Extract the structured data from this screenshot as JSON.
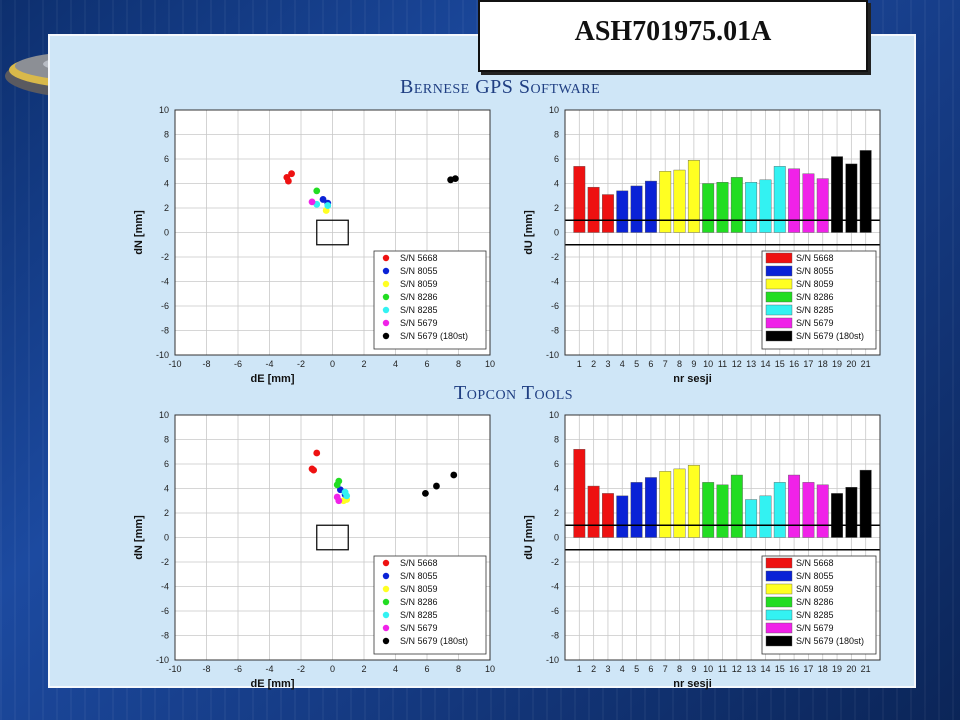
{
  "header": {
    "title": "ASH701975.01A",
    "section_top": "Bernese GPS Software",
    "section_bottom": "Topcon Tools"
  },
  "series": [
    {
      "name": "S/N 5668",
      "color": "#ee1111"
    },
    {
      "name": "S/N 8055",
      "color": "#0a22d6"
    },
    {
      "name": "S/N 8059",
      "color": "#ffff22"
    },
    {
      "name": "S/N 8286",
      "color": "#22dd22"
    },
    {
      "name": "S/N 8285",
      "color": "#33f2f2"
    },
    {
      "name": "S/N 5679",
      "color": "#f022e8"
    },
    {
      "name": "S/N 5679 (180st)",
      "color": "#000000"
    }
  ],
  "chart_data": [
    {
      "type": "scatter",
      "xlabel": "dE [mm]",
      "ylabel": "dN [mm]",
      "xlim": [
        -10,
        10
      ],
      "ylim": [
        -10,
        10
      ],
      "xticks": [
        "-10",
        "-8",
        "-6",
        "-4",
        "-2",
        "0",
        "2",
        "4",
        "6",
        "8",
        "10"
      ],
      "yticks": [
        "10",
        "8",
        "6",
        "4",
        "2",
        "0",
        "-2",
        "-4",
        "-6",
        "-8",
        "-10"
      ],
      "grid": true,
      "legend": "bottom-right",
      "reference_square": {
        "x": [
          -1,
          1
        ],
        "y": [
          -1,
          1
        ]
      },
      "series": [
        {
          "name": "S/N 5668",
          "points": [
            [
              -2.9,
              4.5
            ],
            [
              -2.6,
              4.8
            ],
            [
              -2.8,
              4.2
            ]
          ]
        },
        {
          "name": "S/N 8055",
          "points": [
            [
              -0.6,
              2.7
            ],
            [
              -0.3,
              2.4
            ]
          ]
        },
        {
          "name": "S/N 8059",
          "points": [
            [
              -0.4,
              1.8
            ]
          ]
        },
        {
          "name": "S/N 8286",
          "points": [
            [
              -1.0,
              3.4
            ]
          ]
        },
        {
          "name": "S/N 8285",
          "points": [
            [
              -0.3,
              2.2
            ],
            [
              -1.0,
              2.3
            ]
          ]
        },
        {
          "name": "S/N 5679",
          "points": [
            [
              -1.3,
              2.5
            ]
          ]
        },
        {
          "name": "S/N 5679 (180st)",
          "points": [
            [
              7.5,
              4.3
            ],
            [
              7.8,
              4.4
            ]
          ]
        }
      ]
    },
    {
      "type": "bar",
      "xlabel": "nr sesji",
      "ylabel": "dU [mm]",
      "ylim": [
        -10,
        10
      ],
      "yticks": [
        "10",
        "8",
        "6",
        "4",
        "2",
        "0",
        "-2",
        "-4",
        "-6",
        "-8",
        "-10"
      ],
      "categories": [
        "1",
        "2",
        "3",
        "4",
        "5",
        "6",
        "7",
        "8",
        "9",
        "10",
        "11",
        "12",
        "13",
        "14",
        "15",
        "16",
        "17",
        "18",
        "19",
        "20",
        "21"
      ],
      "values": [
        5.4,
        3.7,
        3.1,
        3.4,
        3.8,
        4.2,
        5.0,
        5.1,
        5.9,
        4.0,
        4.1,
        4.5,
        4.1,
        4.3,
        5.4,
        5.2,
        4.8,
        4.4,
        6.2,
        5.6,
        6.7
      ],
      "series_index": [
        0,
        0,
        0,
        1,
        1,
        1,
        2,
        2,
        2,
        3,
        3,
        3,
        4,
        4,
        4,
        5,
        5,
        5,
        6,
        6,
        6
      ],
      "ref_lines": [
        1,
        -1
      ],
      "grid": true,
      "legend": "bottom-right"
    },
    {
      "type": "scatter",
      "xlabel": "dE [mm]",
      "ylabel": "dN [mm]",
      "xlim": [
        -10,
        10
      ],
      "ylim": [
        -10,
        10
      ],
      "xticks": [
        "-10",
        "-8",
        "-6",
        "-4",
        "-2",
        "0",
        "2",
        "4",
        "6",
        "8",
        "10"
      ],
      "yticks": [
        "10",
        "8",
        "6",
        "4",
        "2",
        "0",
        "-2",
        "-4",
        "-6",
        "-8",
        "-10"
      ],
      "grid": true,
      "legend": "bottom-right",
      "reference_square": {
        "x": [
          -1,
          1
        ],
        "y": [
          -1,
          1
        ]
      },
      "series": [
        {
          "name": "S/N 5668",
          "points": [
            [
              -1.0,
              6.9
            ],
            [
              -1.3,
              5.6
            ],
            [
              -1.2,
              5.5
            ]
          ]
        },
        {
          "name": "S/N 8055",
          "points": [
            [
              0.5,
              3.9
            ],
            [
              0.8,
              3.5
            ]
          ]
        },
        {
          "name": "S/N 8059",
          "points": [
            [
              0.7,
              3.0
            ],
            [
              0.9,
              3.1
            ]
          ]
        },
        {
          "name": "S/N 8286",
          "points": [
            [
              0.3,
              4.3
            ],
            [
              0.4,
              4.6
            ]
          ]
        },
        {
          "name": "S/N 8285",
          "points": [
            [
              0.9,
              3.4
            ],
            [
              0.8,
              3.7
            ]
          ]
        },
        {
          "name": "S/N 5679",
          "points": [
            [
              0.3,
              3.3
            ],
            [
              0.4,
              3.0
            ]
          ]
        },
        {
          "name": "S/N 5679 (180st)",
          "points": [
            [
              5.9,
              3.6
            ],
            [
              6.6,
              4.2
            ],
            [
              7.7,
              5.1
            ]
          ]
        }
      ]
    },
    {
      "type": "bar",
      "xlabel": "nr sesji",
      "ylabel": "dU [mm]",
      "ylim": [
        -10,
        10
      ],
      "yticks": [
        "10",
        "8",
        "6",
        "4",
        "2",
        "0",
        "-2",
        "-4",
        "-6",
        "-8",
        "-10"
      ],
      "categories": [
        "1",
        "2",
        "3",
        "4",
        "5",
        "6",
        "7",
        "8",
        "9",
        "10",
        "11",
        "12",
        "13",
        "14",
        "15",
        "16",
        "17",
        "18",
        "19",
        "20",
        "21"
      ],
      "values": [
        7.2,
        4.2,
        3.6,
        3.4,
        4.5,
        4.9,
        5.4,
        5.6,
        5.9,
        4.5,
        4.3,
        5.1,
        3.1,
        3.4,
        4.5,
        5.1,
        4.5,
        4.3,
        3.6,
        4.1,
        5.5
      ],
      "series_index": [
        0,
        0,
        0,
        1,
        1,
        1,
        2,
        2,
        2,
        3,
        3,
        3,
        4,
        4,
        4,
        5,
        5,
        5,
        6,
        6,
        6
      ],
      "ref_lines": [
        1,
        -1
      ],
      "grid": true,
      "legend": "bottom-right"
    }
  ]
}
